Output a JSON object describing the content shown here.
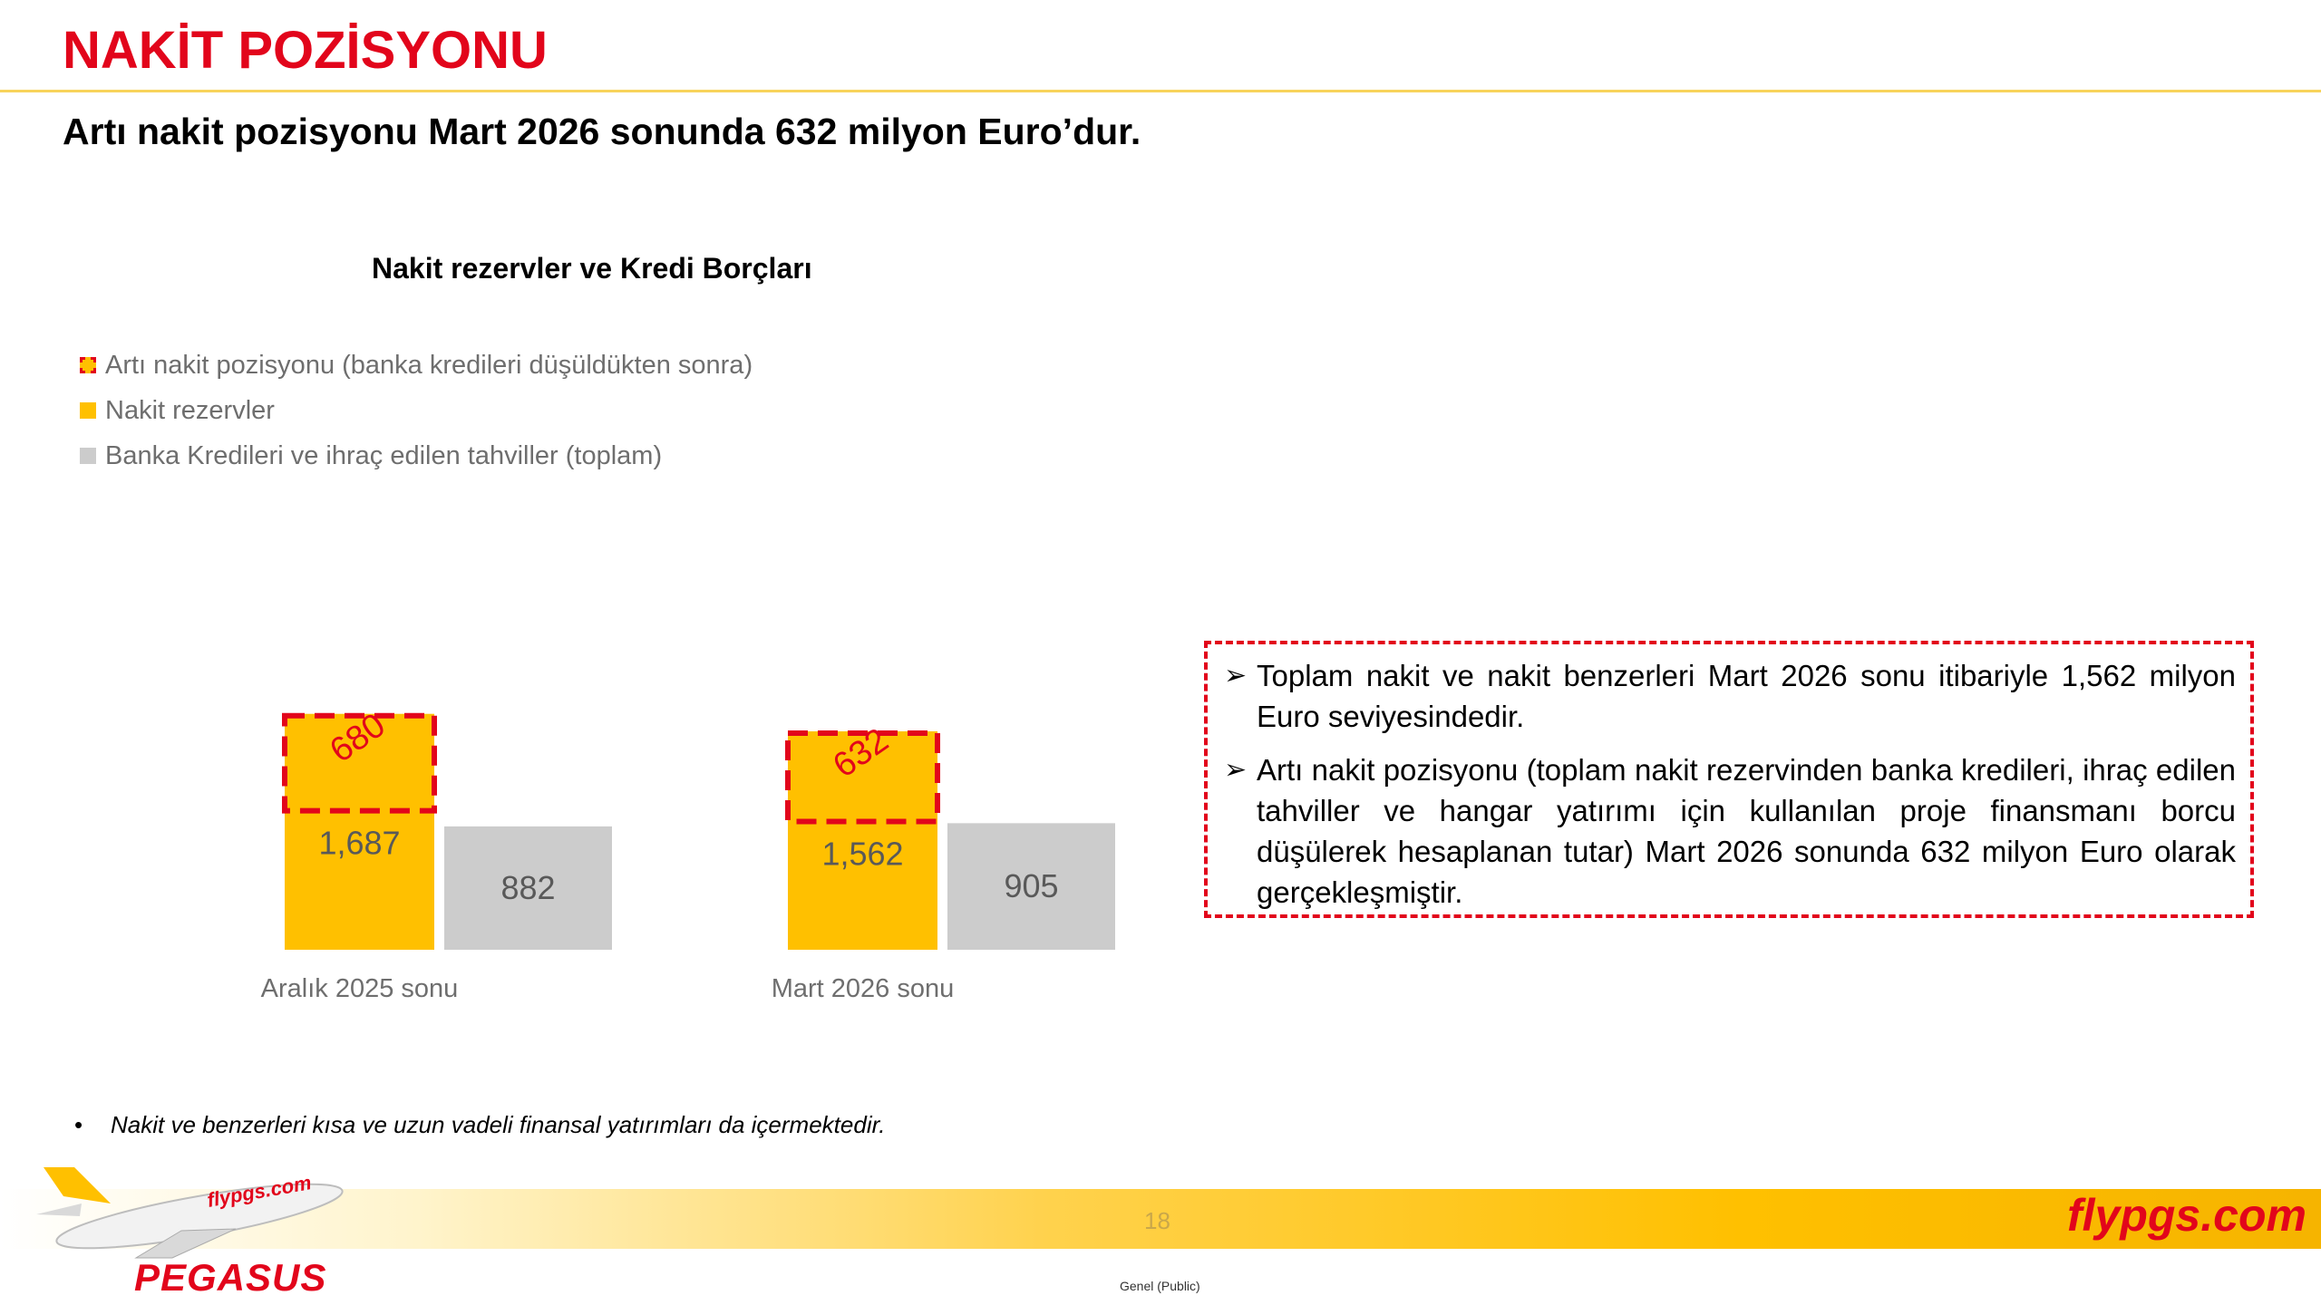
{
  "page": {
    "title": "NAKİT POZİSYONU",
    "subtitle": "Artı nakit pozisyonu Mart 2026 sonunda 632 milyon Euro’dur.",
    "page_number": "18",
    "classification": "Genel (Public)",
    "brand_url": "flypgs.com",
    "logo_name": "PEGASUS",
    "plane_livery_text": "flypgs.com"
  },
  "colors": {
    "accent_red": "#e2051b",
    "cash_yellow": "#ffc000",
    "debt_gray": "#cccccc",
    "rule_yellow": "#f8d35b"
  },
  "chart_data": {
    "type": "bar",
    "title": "Nakit rezervler ve Kredi Borçları",
    "categories": [
      "Aralık 2025 sonu",
      "Mart 2026 sonu"
    ],
    "series": [
      {
        "name": "Nakit rezervler",
        "values": [
          1687,
          1562
        ],
        "labels": [
          "1,687",
          "1,562"
        ]
      },
      {
        "name": "Banka Kredileri ve ihraç edilen tahviller (toplam)",
        "values": [
          882,
          905
        ],
        "labels": [
          "882",
          "905"
        ]
      },
      {
        "name": "Artı nakit pozisyonu (banka kredileri düşüldükten sonra)",
        "values": [
          680,
          632
        ],
        "labels": [
          "680",
          "632"
        ]
      }
    ],
    "legend": [
      "Artı nakit pozisyonu (banka kredileri düşüldükten sonra)",
      "Nakit rezervler",
      "Banka Kredileri ve ihraç edilen tahviller (toplam)"
    ],
    "legend_position": "top-left",
    "grid": false
  },
  "callout": {
    "bullets": [
      "Toplam nakit ve nakit benzerleri Mart 2026 sonu itibariyle 1,562 milyon Euro seviyesindedir.",
      "Artı nakit pozisyonu (toplam nakit rezervinden banka kredileri, ihraç edilen tahviller ve hangar yatırımı için kullanılan proje finansmanı borcu düşülerek hesaplanan tutar) Mart 2026 sonunda 632 milyon Euro olarak gerçekleşmiştir."
    ]
  },
  "footnote": "Nakit ve benzerleri kısa ve uzun vadeli finansal yatırımları da içermektedir."
}
